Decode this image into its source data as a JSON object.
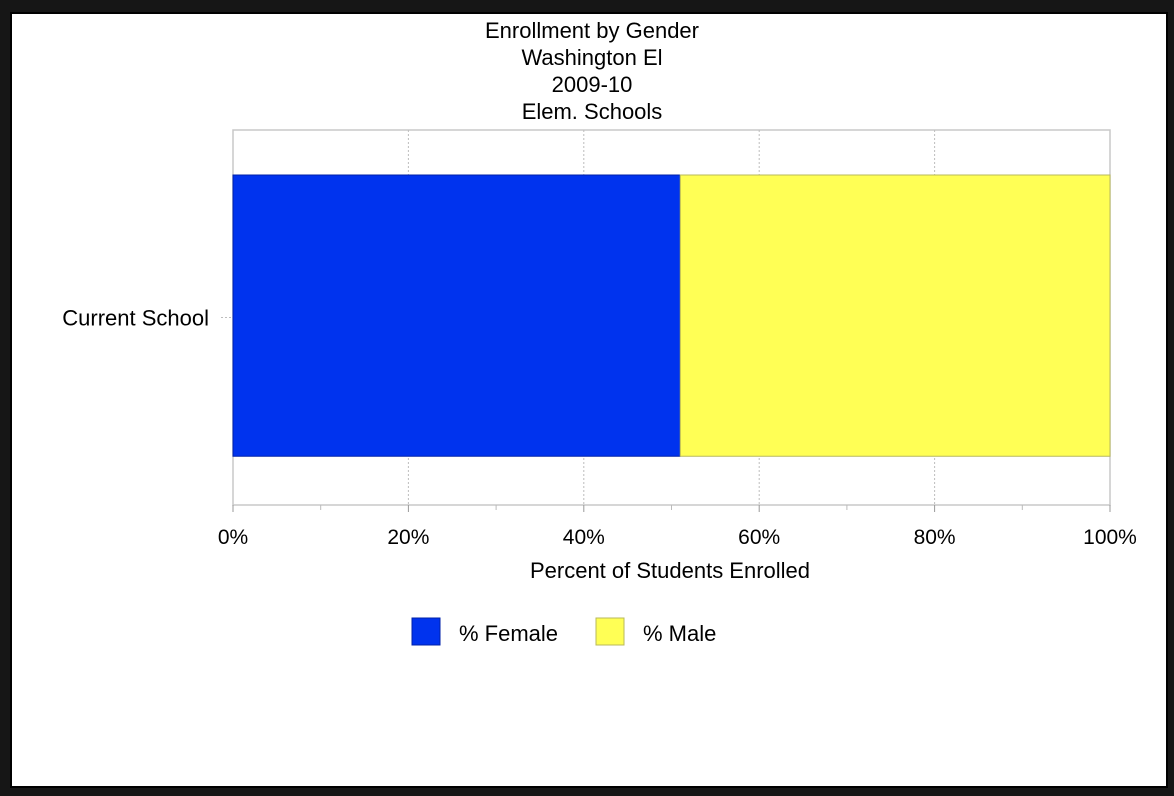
{
  "chart_data": {
    "type": "bar",
    "orientation": "horizontal",
    "stacked": true,
    "title_lines": [
      "Enrollment by Gender",
      "Washington El",
      "2009-10",
      "Elem. Schools"
    ],
    "categories": [
      "Current School"
    ],
    "series": [
      {
        "name": "% Female",
        "values": [
          51
        ],
        "color": "#0033ee"
      },
      {
        "name": "% Male",
        "values": [
          49
        ],
        "color": "#ffff55"
      }
    ],
    "xlabel": "Percent of Students Enrolled",
    "ylabel": "",
    "xlim": [
      0,
      100
    ],
    "x_ticks": [
      0,
      20,
      40,
      60,
      80,
      100
    ],
    "x_tick_labels": [
      "0%",
      "20%",
      "40%",
      "60%",
      "80%",
      "100%"
    ],
    "grid": true,
    "legend_position": "bottom"
  }
}
